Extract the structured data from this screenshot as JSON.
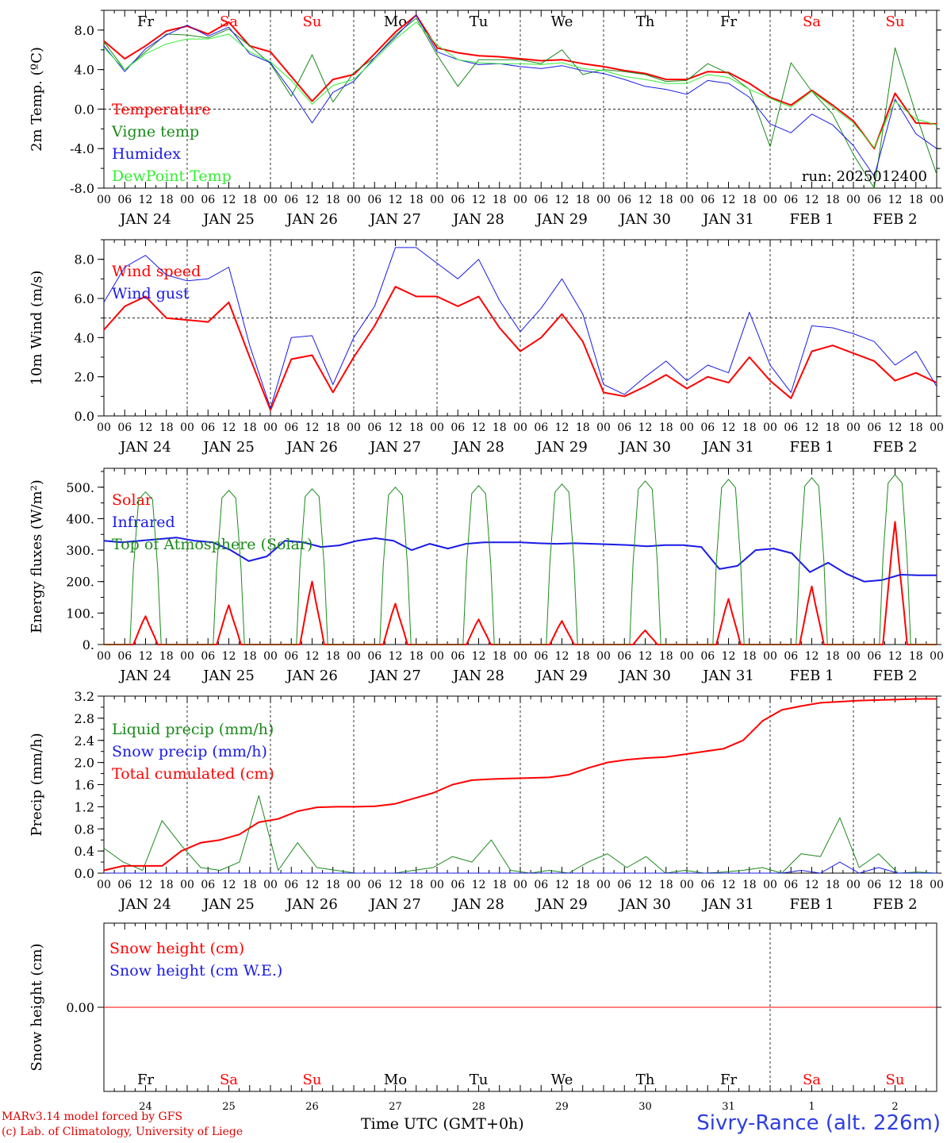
{
  "footer": {
    "credit_line1": "MARv3.14 model forced by GFS",
    "credit_line2": "(c) Lab. of Climatology, University of Liege",
    "x_axis_label": "Time UTC (GMT+0h)",
    "station": "Sivry-Rance (alt. 226m)"
  },
  "colors": {
    "red": "#ff0000",
    "green": "#1a8a1a",
    "blue": "#1a1ae6",
    "lightgreen": "#33ee33",
    "grid": "#000000"
  },
  "time_axis": {
    "hour_ticks": [
      "00",
      "06",
      "12",
      "18"
    ],
    "day_labels": [
      "JAN 24",
      "JAN 25",
      "JAN 26",
      "JAN 27",
      "JAN 28",
      "JAN 29",
      "JAN 30",
      "JAN 31",
      "FEB  1",
      "FEB  2"
    ],
    "weekday_labels": [
      "Fr",
      "Sa",
      "Su",
      "Mo",
      "Tu",
      "We",
      "Th",
      "Fr",
      "Sa",
      "Su"
    ],
    "weekday_colors": [
      "#000000",
      "#ff0000",
      "#ff0000",
      "#000000",
      "#000000",
      "#000000",
      "#000000",
      "#000000",
      "#ff0000",
      "#ff0000"
    ],
    "day_numbers": [
      "24",
      "25",
      "26",
      "27",
      "28",
      "29",
      "30",
      "31",
      "1",
      "2"
    ],
    "start": "2025-01-24 00 UTC",
    "end": "2025-02-03 00 UTC",
    "step_hours": 6
  },
  "chart_data": [
    {
      "type": "line",
      "ylabel": "2m Temp. (ºC)",
      "ylim": [
        -8,
        10
      ],
      "yticks": [
        "-8.0",
        "-4.0",
        "0.0",
        "4.0",
        "8.0"
      ],
      "ytick_values": [
        -8,
        -4,
        0,
        4,
        8
      ],
      "ref_line": 0,
      "annotation": "run: 2025012400",
      "show_weekdays": true,
      "series": [
        {
          "name": "Temperature",
          "color": "#ff0000",
          "width": 2,
          "values": [
            6.9,
            5.1,
            6.4,
            7.9,
            8.4,
            7.6,
            8.8,
            6.4,
            5.8,
            3.3,
            0.8,
            3.0,
            3.5,
            5.6,
            7.8,
            9.5,
            6.2,
            5.7,
            5.4,
            5.3,
            5.1,
            4.9,
            5.0,
            4.6,
            4.3,
            3.9,
            3.6,
            3.0,
            3.0,
            3.8,
            3.7,
            2.6,
            1.2,
            0.4,
            1.9,
            0.4,
            -1.2,
            -4.0,
            1.6,
            -1.4,
            -1.5
          ]
        },
        {
          "name": "Vigne temp",
          "color": "#1a8a1a",
          "width": 1,
          "values": [
            6.8,
            4.0,
            5.8,
            7.6,
            7.5,
            7.2,
            8.1,
            6.4,
            4.6,
            1.3,
            5.5,
            0.7,
            3.7,
            5.2,
            7.5,
            9.2,
            5.5,
            2.3,
            5.0,
            5.0,
            5.0,
            4.6,
            6.0,
            3.5,
            4.0,
            3.8,
            3.5,
            2.8,
            2.9,
            4.6,
            3.6,
            2.0,
            -3.8,
            4.7,
            1.8,
            -0.5,
            -4.6,
            -8.0,
            6.2,
            -0.5,
            -6.6
          ]
        },
        {
          "name": "Humidex",
          "color": "#1a1ae6",
          "width": 1,
          "values": [
            6.4,
            3.8,
            6.1,
            7.5,
            8.5,
            7.4,
            8.3,
            5.6,
            4.7,
            1.8,
            -1.4,
            1.7,
            2.8,
            5.2,
            7.3,
            9.5,
            5.8,
            5.0,
            4.5,
            4.6,
            4.3,
            4.1,
            4.4,
            3.9,
            3.6,
            3.0,
            2.3,
            2.0,
            1.5,
            2.9,
            2.6,
            1.2,
            -1.5,
            -2.4,
            -0.5,
            -1.6,
            -3.7,
            -6.8,
            1.0,
            -2.5,
            -4.0
          ]
        },
        {
          "name": "DewPoint Temp",
          "color": "#33ee33",
          "width": 1,
          "values": [
            6.2,
            4.0,
            5.6,
            6.6,
            7.1,
            7.1,
            7.6,
            5.8,
            4.8,
            2.9,
            0.5,
            2.4,
            3.0,
            5.0,
            7.1,
            8.8,
            6.5,
            5.0,
            4.7,
            4.6,
            4.6,
            4.5,
            4.7,
            4.1,
            3.9,
            3.3,
            3.0,
            2.6,
            2.6,
            3.5,
            3.2,
            2.0,
            1.1,
            0.2,
            1.8,
            0.2,
            -1.4,
            -3.9,
            0.8,
            -1.0,
            -1.6
          ]
        }
      ]
    },
    {
      "type": "line",
      "ylabel": "10m Wind (m/s)",
      "ylim": [
        0,
        9
      ],
      "yticks": [
        "0.0",
        "2.0",
        "4.0",
        "6.0",
        "8.0"
      ],
      "ytick_values": [
        0,
        2,
        4,
        6,
        8
      ],
      "ref_line": 5,
      "show_weekdays": false,
      "series": [
        {
          "name": "Wind speed",
          "color": "#ff0000",
          "width": 2,
          "values": [
            4.4,
            5.6,
            6.1,
            5.0,
            4.9,
            4.8,
            5.8,
            3.0,
            0.3,
            2.9,
            3.1,
            1.2,
            3.0,
            4.6,
            6.6,
            6.1,
            6.1,
            5.6,
            6.1,
            4.5,
            3.3,
            4.0,
            5.2,
            3.8,
            1.2,
            1.0,
            1.5,
            2.1,
            1.4,
            2.0,
            1.7,
            3.0,
            1.8,
            0.9,
            3.3,
            3.6,
            3.2,
            2.8,
            1.8,
            2.2,
            1.7
          ]
        },
        {
          "name": "Wind gust",
          "color": "#1a1ae6",
          "width": 1,
          "values": [
            5.8,
            7.6,
            8.2,
            7.2,
            6.9,
            7.0,
            7.6,
            3.6,
            0.4,
            4.0,
            4.1,
            1.6,
            4.0,
            5.6,
            8.6,
            8.6,
            7.8,
            7.0,
            8.0,
            5.9,
            4.3,
            5.5,
            7.0,
            5.2,
            1.6,
            1.1,
            2.0,
            2.8,
            1.8,
            2.6,
            2.2,
            5.3,
            2.6,
            1.2,
            4.6,
            4.5,
            4.2,
            3.8,
            2.6,
            3.3,
            1.5
          ]
        }
      ]
    },
    {
      "type": "line",
      "ylabel": "Energy fluxes (W/m²)",
      "ylim": [
        0,
        560
      ],
      "yticks": [
        "0.",
        "100.",
        "200.",
        "300.",
        "400.",
        "500."
      ],
      "ytick_values": [
        0,
        100,
        200,
        300,
        400,
        500
      ],
      "show_weekdays": false,
      "series": [
        {
          "name": "Solar",
          "color": "#ff0000",
          "width": 2,
          "peaks": [
            90,
            125,
            200,
            130,
            80,
            75,
            45,
            145,
            185,
            390
          ]
        },
        {
          "name": "Infrared",
          "color": "#1a1ae6",
          "width": 2,
          "values": [
            330,
            325,
            330,
            335,
            340,
            330,
            325,
            300,
            265,
            280,
            330,
            325,
            310,
            315,
            330,
            338,
            330,
            300,
            320,
            305,
            320,
            325,
            325,
            325,
            322,
            320,
            322,
            320,
            318,
            316,
            312,
            316,
            316,
            310,
            240,
            250,
            300,
            305,
            290,
            230,
            260,
            225,
            200,
            205,
            222,
            220,
            220
          ]
        },
        {
          "name": "Top of Atmosphere (Solar)",
          "color": "#1a8a1a",
          "width": 1,
          "peaks": [
            485,
            490,
            495,
            500,
            505,
            510,
            520,
            525,
            530,
            540
          ]
        }
      ]
    },
    {
      "type": "line",
      "ylabel": "Precip (mm/h)",
      "ylim": [
        0,
        3.2
      ],
      "yticks": [
        "0.0",
        "0.4",
        "0.8",
        "1.2",
        "1.6",
        "2.0",
        "2.4",
        "2.8",
        "3.2"
      ],
      "ytick_values": [
        0,
        0.4,
        0.8,
        1.2,
        1.6,
        2.0,
        2.4,
        2.8,
        3.2
      ],
      "show_weekdays": false,
      "series": [
        {
          "name": "Liquid precip (mm/h)",
          "color": "#1a8a1a",
          "width": 1,
          "values": [
            0.45,
            0.2,
            0.05,
            0.95,
            0.5,
            0.1,
            0.05,
            0.2,
            1.4,
            0.05,
            0.55,
            0.1,
            0.05,
            0.0,
            0.0,
            0.0,
            0.05,
            0.1,
            0.3,
            0.2,
            0.6,
            0.05,
            0.0,
            0.05,
            0.0,
            0.2,
            0.35,
            0.1,
            0.3,
            0.0,
            0.05,
            0.0,
            0.02,
            0.05,
            0.1,
            0.0,
            0.35,
            0.3,
            1.0,
            0.1,
            0.35,
            0.0,
            0.02,
            0.0
          ]
        },
        {
          "name": "Snow precip (mm/h)",
          "color": "#1a1ae6",
          "width": 1,
          "values": [
            0.0,
            0.0,
            0.0,
            0.0,
            0.0,
            0.0,
            0.0,
            0.0,
            0.0,
            0.0,
            0.0,
            0.0,
            0.0,
            0.0,
            0.0,
            0.0,
            0.0,
            0.0,
            0.0,
            0.0,
            0.0,
            0.0,
            0.0,
            0.0,
            0.0,
            0.0,
            0.0,
            0.0,
            0.0,
            0.0,
            0.0,
            0.0,
            0.0,
            0.0,
            0.0,
            0.0,
            0.05,
            0.0,
            0.2,
            0.0,
            0.1,
            0.0,
            0.0,
            0.0
          ]
        },
        {
          "name": "Total cumulated (cm)",
          "color": "#ff0000",
          "width": 2,
          "values": [
            0.05,
            0.13,
            0.13,
            0.13,
            0.4,
            0.55,
            0.6,
            0.7,
            0.92,
            0.98,
            1.12,
            1.19,
            1.2,
            1.2,
            1.21,
            1.25,
            1.35,
            1.45,
            1.6,
            1.68,
            1.7,
            1.71,
            1.72,
            1.73,
            1.78,
            1.9,
            2.0,
            2.05,
            2.08,
            2.1,
            2.15,
            2.2,
            2.25,
            2.4,
            2.75,
            2.95,
            3.02,
            3.08,
            3.1,
            3.12,
            3.13,
            3.14,
            3.15,
            3.15
          ]
        }
      ]
    },
    {
      "type": "line",
      "ylabel": "Snow height (cm)",
      "ylim": [
        -1,
        1
      ],
      "yticks": [
        "0.00"
      ],
      "ytick_values": [
        0
      ],
      "show_weekdays": false,
      "bottom_weekdays": true,
      "series": [
        {
          "name": "Snow height (cm)",
          "color": "#ff0000",
          "width": 1,
          "values": [
            0,
            0
          ]
        },
        {
          "name": "Snow height (cm W.E.)",
          "color": "#1a1ae6",
          "width": 1,
          "values": []
        }
      ]
    }
  ]
}
